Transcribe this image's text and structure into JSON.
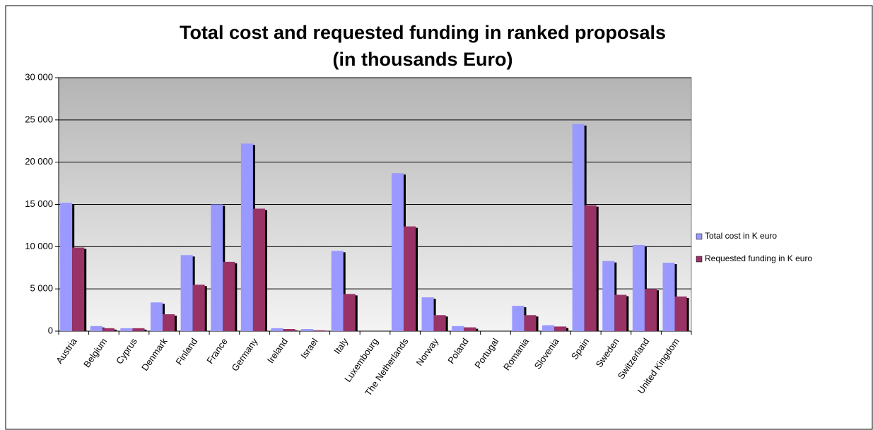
{
  "chart_data": {
    "type": "bar",
    "title": "Total cost and requested funding in ranked proposals",
    "subtitle": "(in thousands Euro)",
    "categories": [
      "Austria",
      "Belgium",
      "Cyprus",
      "Denmark",
      "Finland",
      "France",
      "Germany",
      "Ireland",
      "Israel",
      "Italy",
      "Luxembourg",
      "The Netherlands",
      "Norway",
      "Poland",
      "Portugal",
      "Romania",
      "Slovenia",
      "Spain",
      "Sweden",
      "Switzerland",
      "United Kingdom"
    ],
    "series": [
      {
        "name": "Total cost in K euro",
        "color": "#9999ff",
        "values": [
          15200,
          600,
          350,
          3400,
          9000,
          15000,
          22200,
          350,
          250,
          9500,
          0,
          18700,
          4000,
          600,
          0,
          3000,
          700,
          24500,
          8300,
          10200,
          8100
        ]
      },
      {
        "name": "Requested funding in K euro",
        "color": "#993366",
        "values": [
          9900,
          350,
          350,
          2000,
          5500,
          8200,
          14500,
          250,
          100,
          4400,
          0,
          12400,
          1900,
          450,
          0,
          1900,
          550,
          14900,
          4300,
          5000,
          4100
        ]
      }
    ],
    "ylim": [
      0,
      30000
    ],
    "yticks": [
      0,
      {
        "value": 5000,
        "label": "5 000"
      },
      {
        "value": 10000,
        "label": "10 000"
      },
      {
        "value": 15000,
        "label": "15 000"
      },
      {
        "value": 20000,
        "label": "20 000"
      },
      {
        "value": 25000,
        "label": "25 000"
      },
      {
        "value": 30000,
        "label": "30 000"
      }
    ],
    "grid": true,
    "legend": "right"
  }
}
